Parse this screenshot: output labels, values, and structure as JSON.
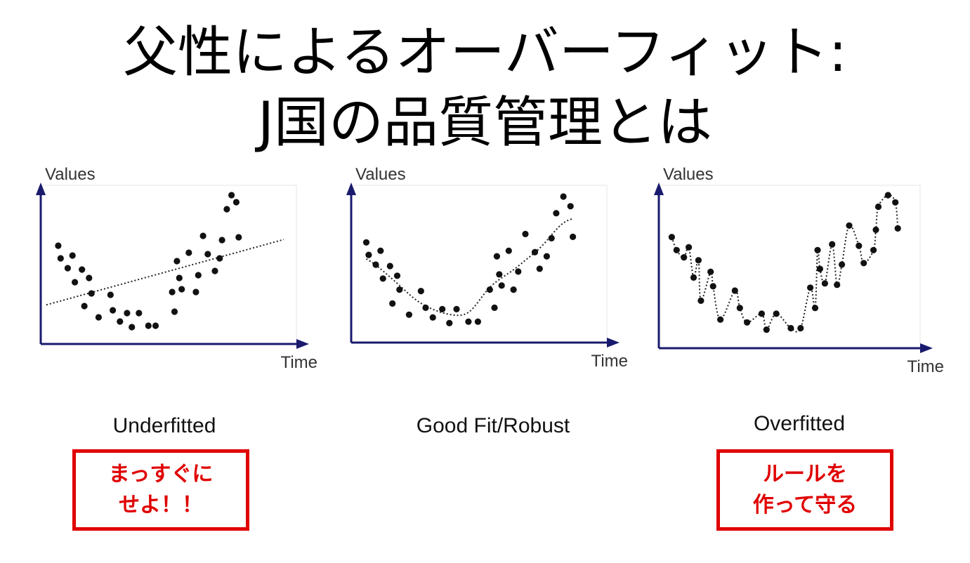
{
  "title": {
    "line1": "父性によるオーバーフィット:",
    "line2": "J国の品質管理とは"
  },
  "colors": {
    "axis": "#1a1a6e",
    "dots": "#111111",
    "note": "#e00000"
  },
  "chart_data": [
    {
      "type": "scatter",
      "xlabel": "Time",
      "ylabel": "Values",
      "caption": "Underfitted",
      "xlim": [
        0,
        100
      ],
      "ylim": [
        0,
        100
      ],
      "fit": "linear",
      "points": [
        {
          "x": 5,
          "y": 64
        },
        {
          "x": 6,
          "y": 55
        },
        {
          "x": 9,
          "y": 48
        },
        {
          "x": 11,
          "y": 57
        },
        {
          "x": 12,
          "y": 38
        },
        {
          "x": 15,
          "y": 47
        },
        {
          "x": 16,
          "y": 21
        },
        {
          "x": 18,
          "y": 41
        },
        {
          "x": 19,
          "y": 30
        },
        {
          "x": 22,
          "y": 13
        },
        {
          "x": 27,
          "y": 29
        },
        {
          "x": 28,
          "y": 18
        },
        {
          "x": 31,
          "y": 10
        },
        {
          "x": 34,
          "y": 16
        },
        {
          "x": 36,
          "y": 6
        },
        {
          "x": 39,
          "y": 16
        },
        {
          "x": 43,
          "y": 7
        },
        {
          "x": 46,
          "y": 7
        },
        {
          "x": 53,
          "y": 31
        },
        {
          "x": 54,
          "y": 17
        },
        {
          "x": 55,
          "y": 53
        },
        {
          "x": 56,
          "y": 41
        },
        {
          "x": 57,
          "y": 33
        },
        {
          "x": 60,
          "y": 59
        },
        {
          "x": 63,
          "y": 31
        },
        {
          "x": 64,
          "y": 43
        },
        {
          "x": 66,
          "y": 71
        },
        {
          "x": 68,
          "y": 58
        },
        {
          "x": 71,
          "y": 46
        },
        {
          "x": 73,
          "y": 55
        },
        {
          "x": 74,
          "y": 68
        },
        {
          "x": 76,
          "y": 90
        },
        {
          "x": 78,
          "y": 100
        },
        {
          "x": 80,
          "y": 95
        },
        {
          "x": 81,
          "y": 70
        }
      ]
    },
    {
      "type": "scatter",
      "xlabel": "Time",
      "ylabel": "Values",
      "caption": "Good Fit/Robust",
      "xlim": [
        0,
        100
      ],
      "ylim": [
        0,
        100
      ],
      "fit": "smooth",
      "points": [
        {
          "x": 4,
          "y": 66
        },
        {
          "x": 5,
          "y": 57
        },
        {
          "x": 8,
          "y": 50
        },
        {
          "x": 10,
          "y": 60
        },
        {
          "x": 11,
          "y": 40
        },
        {
          "x": 14,
          "y": 49
        },
        {
          "x": 15,
          "y": 22
        },
        {
          "x": 17,
          "y": 42
        },
        {
          "x": 18,
          "y": 32
        },
        {
          "x": 22,
          "y": 14
        },
        {
          "x": 27,
          "y": 31
        },
        {
          "x": 29,
          "y": 19
        },
        {
          "x": 32,
          "y": 12
        },
        {
          "x": 36,
          "y": 18
        },
        {
          "x": 39,
          "y": 8
        },
        {
          "x": 42,
          "y": 18
        },
        {
          "x": 47,
          "y": 9
        },
        {
          "x": 51,
          "y": 9
        },
        {
          "x": 56,
          "y": 32
        },
        {
          "x": 58,
          "y": 19
        },
        {
          "x": 59,
          "y": 56
        },
        {
          "x": 60,
          "y": 43
        },
        {
          "x": 61,
          "y": 35
        },
        {
          "x": 64,
          "y": 60
        },
        {
          "x": 66,
          "y": 32
        },
        {
          "x": 68,
          "y": 45
        },
        {
          "x": 71,
          "y": 72
        },
        {
          "x": 75,
          "y": 59
        },
        {
          "x": 77,
          "y": 47
        },
        {
          "x": 80,
          "y": 56
        },
        {
          "x": 82,
          "y": 69
        },
        {
          "x": 84,
          "y": 87
        },
        {
          "x": 87,
          "y": 99
        },
        {
          "x": 90,
          "y": 92
        },
        {
          "x": 91,
          "y": 70
        }
      ]
    },
    {
      "type": "scatter",
      "xlabel": "Time",
      "ylabel": "Values",
      "caption": "Overfitted",
      "xlim": [
        0,
        100
      ],
      "ylim": [
        0,
        100
      ],
      "fit": "interpolate",
      "points": [
        {
          "x": 3,
          "y": 71
        },
        {
          "x": 5,
          "y": 62
        },
        {
          "x": 8,
          "y": 57
        },
        {
          "x": 10,
          "y": 64
        },
        {
          "x": 12,
          "y": 43
        },
        {
          "x": 14,
          "y": 55
        },
        {
          "x": 15,
          "y": 27
        },
        {
          "x": 19,
          "y": 47
        },
        {
          "x": 20,
          "y": 37
        },
        {
          "x": 23,
          "y": 14
        },
        {
          "x": 29,
          "y": 34
        },
        {
          "x": 31,
          "y": 22
        },
        {
          "x": 34,
          "y": 12
        },
        {
          "x": 40,
          "y": 18
        },
        {
          "x": 42,
          "y": 7
        },
        {
          "x": 46,
          "y": 18
        },
        {
          "x": 52,
          "y": 8
        },
        {
          "x": 56,
          "y": 8
        },
        {
          "x": 60,
          "y": 36
        },
        {
          "x": 62,
          "y": 22
        },
        {
          "x": 63,
          "y": 62
        },
        {
          "x": 64,
          "y": 49
        },
        {
          "x": 66,
          "y": 39
        },
        {
          "x": 69,
          "y": 66
        },
        {
          "x": 71,
          "y": 38
        },
        {
          "x": 73,
          "y": 52
        },
        {
          "x": 76,
          "y": 79
        },
        {
          "x": 80,
          "y": 65
        },
        {
          "x": 82,
          "y": 53
        },
        {
          "x": 86,
          "y": 62
        },
        {
          "x": 87,
          "y": 76
        },
        {
          "x": 88,
          "y": 92
        },
        {
          "x": 92,
          "y": 100
        },
        {
          "x": 95,
          "y": 95
        },
        {
          "x": 96,
          "y": 77
        }
      ]
    }
  ],
  "notes": {
    "underfit": {
      "line1": "まっすぐに",
      "line2": "せよ！！"
    },
    "overfit": {
      "line1": "ルールを",
      "line2": "作って守る"
    }
  }
}
